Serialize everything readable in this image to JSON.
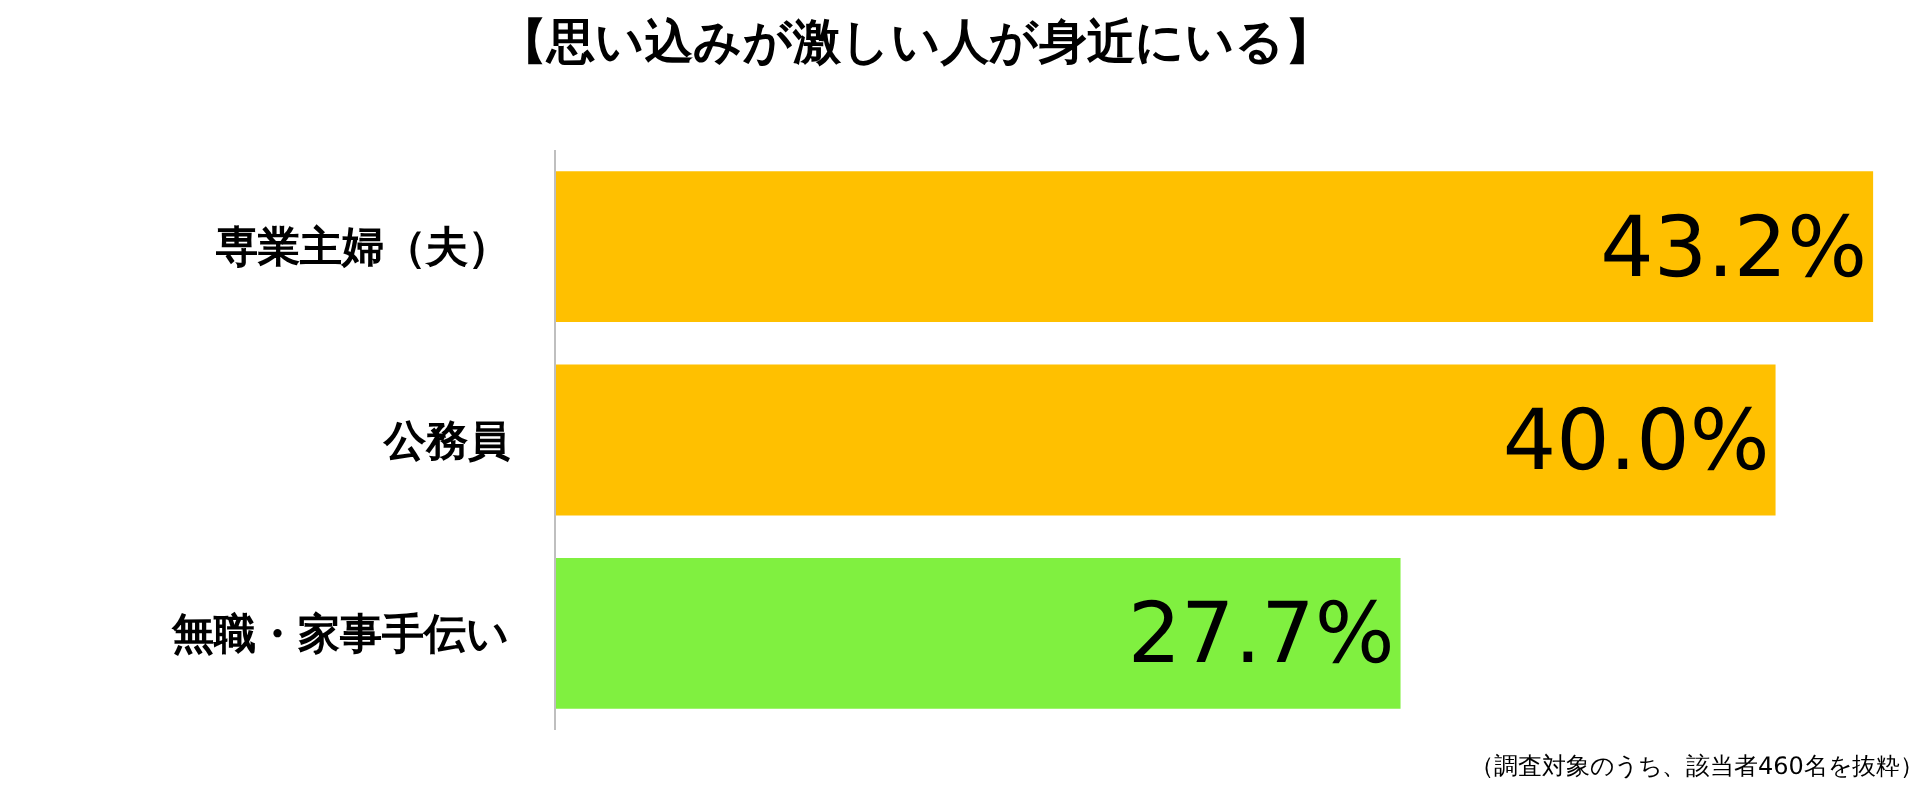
{
  "chart_data": {
    "type": "bar",
    "orientation": "horizontal",
    "title": "【思い込みが激しい人が身近にいる】",
    "categories": [
      "専業主婦（夫）",
      "公務員",
      "無職・家事手伝い"
    ],
    "values": [
      43.2,
      40.0,
      27.7
    ],
    "colors": [
      "#ffc000",
      "#ffc000",
      "#80f040"
    ],
    "value_labels": [
      "43.2%",
      "40.0%",
      "27.7%"
    ],
    "xlim": [
      0,
      45
    ],
    "tick_labels": "y",
    "annotations": [
      "（調査対象のうち、該当者460名を抜粋）"
    ]
  }
}
